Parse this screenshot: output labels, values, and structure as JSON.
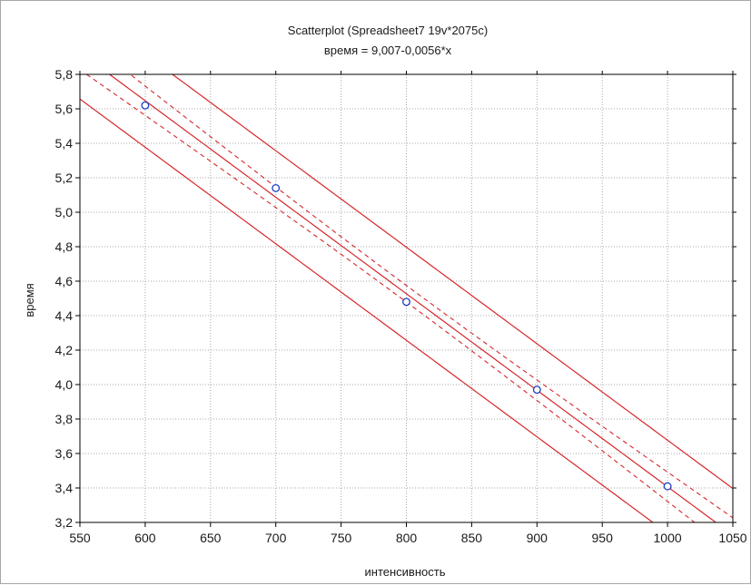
{
  "chart_data": {
    "type": "scatter",
    "title": "Scatterplot (Spreadsheet7 19v*2075c)",
    "subtitle": "время = 9,007-0,0056*x",
    "xlabel": "интенсивность",
    "ylabel": "время",
    "xlim": [
      550,
      1050
    ],
    "ylim": [
      3.2,
      5.8
    ],
    "x_ticks": [
      550,
      600,
      650,
      700,
      750,
      800,
      850,
      900,
      950,
      1000,
      1050
    ],
    "y_ticks": [
      3.2,
      3.4,
      3.6,
      3.8,
      4.0,
      4.2,
      4.4,
      4.6,
      4.8,
      5.0,
      5.2,
      5.4,
      5.6,
      5.8
    ],
    "x_tick_labels": [
      "550",
      "600",
      "650",
      "700",
      "750",
      "800",
      "850",
      "900",
      "950",
      "1000",
      "1050"
    ],
    "y_tick_labels": [
      "3,2",
      "3,4",
      "3,6",
      "3,8",
      "4,0",
      "4,2",
      "4,4",
      "4,6",
      "4,8",
      "5,0",
      "5,2",
      "5,4",
      "5,6",
      "5,8"
    ],
    "grid": true,
    "points": [
      {
        "x": 600,
        "y": 5.62
      },
      {
        "x": 700,
        "y": 5.14
      },
      {
        "x": 800,
        "y": 4.48
      },
      {
        "x": 900,
        "y": 3.97
      },
      {
        "x": 1000,
        "y": 3.41
      }
    ],
    "regression": {
      "intercept": 9.007,
      "slope": -0.0056
    },
    "confidence_band": {
      "offset_at_ends": 0.1,
      "offset_at_center": 0.048,
      "center_x": 800
    },
    "prediction_band": {
      "offset": 0.27
    },
    "colors": {
      "point": "#1f3fbf",
      "lines": "#d6262b",
      "grid": "#a8a8a8",
      "axis": "#000000",
      "plot_background": "#ffffff",
      "frame": "#a7a7a7"
    }
  }
}
